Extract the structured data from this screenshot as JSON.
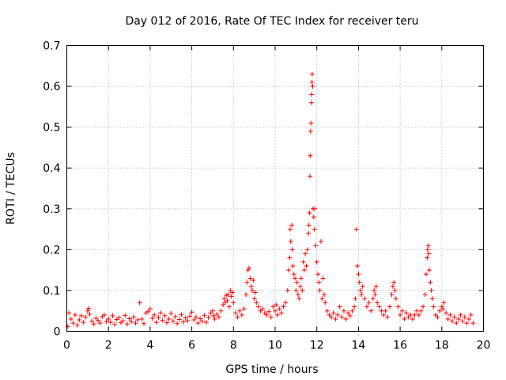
{
  "chart_data": {
    "type": "scatter",
    "title": "Day 012 of 2016, Rate Of TEC Index for receiver teru",
    "xlabel": "GPS time / hours",
    "ylabel": "ROTI / TECUs",
    "xlim": [
      0,
      20
    ],
    "ylim": [
      0,
      0.7
    ],
    "xticks": [
      0,
      2,
      4,
      6,
      8,
      10,
      12,
      14,
      16,
      18,
      20
    ],
    "yticks": [
      0,
      0.1,
      0.2,
      0.3,
      0.4,
      0.5,
      0.6,
      0.7
    ],
    "xtick_labels": [
      "0",
      "2",
      "4",
      "6",
      "8",
      "10",
      "12",
      "14",
      "16",
      "18",
      "20"
    ],
    "ytick_labels": [
      "0",
      "0.1",
      "0.2",
      "0.3",
      "0.4",
      "0.5",
      "0.6",
      "0.7"
    ],
    "grid": true,
    "marker": "plus",
    "color": "#ff0000",
    "series": [
      {
        "name": "ROTI",
        "points": [
          [
            0.05,
            0.012
          ],
          [
            0.1,
            0.045
          ],
          [
            0.2,
            0.03
          ],
          [
            0.3,
            0.02
          ],
          [
            0.4,
            0.04
          ],
          [
            0.5,
            0.015
          ],
          [
            0.6,
            0.028
          ],
          [
            0.7,
            0.038
          ],
          [
            0.8,
            0.022
          ],
          [
            0.9,
            0.035
          ],
          [
            1.0,
            0.05
          ],
          [
            1.05,
            0.056
          ],
          [
            1.1,
            0.042
          ],
          [
            1.2,
            0.025
          ],
          [
            1.3,
            0.018
          ],
          [
            1.4,
            0.032
          ],
          [
            1.5,
            0.027
          ],
          [
            1.6,
            0.02
          ],
          [
            1.7,
            0.036
          ],
          [
            1.8,
            0.04
          ],
          [
            1.9,
            0.024
          ],
          [
            2.0,
            0.03
          ],
          [
            2.1,
            0.022
          ],
          [
            2.2,
            0.038
          ],
          [
            2.3,
            0.017
          ],
          [
            2.4,
            0.029
          ],
          [
            2.5,
            0.033
          ],
          [
            2.6,
            0.021
          ],
          [
            2.7,
            0.026
          ],
          [
            2.8,
            0.039
          ],
          [
            2.9,
            0.018
          ],
          [
            3.0,
            0.031
          ],
          [
            3.1,
            0.024
          ],
          [
            3.2,
            0.035
          ],
          [
            3.3,
            0.02
          ],
          [
            3.4,
            0.028
          ],
          [
            3.5,
            0.07
          ],
          [
            3.6,
            0.03
          ],
          [
            3.7,
            0.019
          ],
          [
            3.8,
            0.045
          ],
          [
            3.9,
            0.048
          ],
          [
            4.0,
            0.055
          ],
          [
            4.1,
            0.032
          ],
          [
            4.2,
            0.04
          ],
          [
            4.3,
            0.022
          ],
          [
            4.4,
            0.034
          ],
          [
            4.5,
            0.045
          ],
          [
            4.6,
            0.027
          ],
          [
            4.7,
            0.038
          ],
          [
            4.8,
            0.021
          ],
          [
            4.9,
            0.03
          ],
          [
            5.0,
            0.044
          ],
          [
            5.1,
            0.025
          ],
          [
            5.2,
            0.036
          ],
          [
            5.3,
            0.019
          ],
          [
            5.4,
            0.029
          ],
          [
            5.5,
            0.041
          ],
          [
            5.6,
            0.023
          ],
          [
            5.7,
            0.033
          ],
          [
            5.8,
            0.026
          ],
          [
            5.9,
            0.037
          ],
          [
            6.0,
            0.047
          ],
          [
            6.1,
            0.028
          ],
          [
            6.2,
            0.035
          ],
          [
            6.3,
            0.02
          ],
          [
            6.4,
            0.031
          ],
          [
            6.5,
            0.025
          ],
          [
            6.6,
            0.039
          ],
          [
            6.7,
            0.022
          ],
          [
            6.8,
            0.034
          ],
          [
            6.9,
            0.045
          ],
          [
            7.0,
            0.05
          ],
          [
            7.05,
            0.038
          ],
          [
            7.1,
            0.03
          ],
          [
            7.2,
            0.042
          ],
          [
            7.3,
            0.035
          ],
          [
            7.4,
            0.05
          ],
          [
            7.5,
            0.065
          ],
          [
            7.55,
            0.08
          ],
          [
            7.6,
            0.07
          ],
          [
            7.65,
            0.088
          ],
          [
            7.7,
            0.075
          ],
          [
            7.75,
            0.09
          ],
          [
            7.8,
            0.06
          ],
          [
            7.85,
            0.1
          ],
          [
            7.9,
            0.085
          ],
          [
            7.95,
            0.095
          ],
          [
            8.0,
            0.07
          ],
          [
            8.1,
            0.045
          ],
          [
            8.2,
            0.035
          ],
          [
            8.3,
            0.05
          ],
          [
            8.4,
            0.04
          ],
          [
            8.5,
            0.055
          ],
          [
            8.6,
            0.09
          ],
          [
            8.65,
            0.12
          ],
          [
            8.7,
            0.15
          ],
          [
            8.75,
            0.155
          ],
          [
            8.8,
            0.13
          ],
          [
            8.85,
            0.11
          ],
          [
            8.9,
            0.1
          ],
          [
            8.95,
            0.125
          ],
          [
            9.0,
            0.08
          ],
          [
            9.05,
            0.095
          ],
          [
            9.1,
            0.07
          ],
          [
            9.2,
            0.06
          ],
          [
            9.3,
            0.05
          ],
          [
            9.4,
            0.055
          ],
          [
            9.5,
            0.045
          ],
          [
            9.6,
            0.04
          ],
          [
            9.7,
            0.048
          ],
          [
            9.8,
            0.035
          ],
          [
            9.9,
            0.06
          ],
          [
            10.0,
            0.05
          ],
          [
            10.05,
            0.065
          ],
          [
            10.1,
            0.04
          ],
          [
            10.2,
            0.055
          ],
          [
            10.3,
            0.045
          ],
          [
            10.4,
            0.06
          ],
          [
            10.5,
            0.07
          ],
          [
            10.6,
            0.1
          ],
          [
            10.65,
            0.15
          ],
          [
            10.7,
            0.18
          ],
          [
            10.72,
            0.25
          ],
          [
            10.75,
            0.22
          ],
          [
            10.8,
            0.26
          ],
          [
            10.82,
            0.2
          ],
          [
            10.85,
            0.16
          ],
          [
            10.9,
            0.14
          ],
          [
            10.95,
            0.13
          ],
          [
            11.0,
            0.1
          ],
          [
            11.05,
            0.12
          ],
          [
            11.1,
            0.09
          ],
          [
            11.15,
            0.08
          ],
          [
            11.2,
            0.11
          ],
          [
            11.25,
            0.13
          ],
          [
            11.3,
            0.1
          ],
          [
            11.35,
            0.17
          ],
          [
            11.4,
            0.15
          ],
          [
            11.45,
            0.19
          ],
          [
            11.5,
            0.16
          ],
          [
            11.55,
            0.2
          ],
          [
            11.6,
            0.24
          ],
          [
            11.62,
            0.26
          ],
          [
            11.65,
            0.29
          ],
          [
            11.67,
            0.38
          ],
          [
            11.68,
            0.43
          ],
          [
            11.7,
            0.49
          ],
          [
            11.72,
            0.51
          ],
          [
            11.74,
            0.56
          ],
          [
            11.75,
            0.58
          ],
          [
            11.77,
            0.61
          ],
          [
            11.78,
            0.63
          ],
          [
            11.8,
            0.6
          ],
          [
            11.82,
            0.3
          ],
          [
            11.85,
            0.28
          ],
          [
            11.88,
            0.25
          ],
          [
            11.9,
            0.3
          ],
          [
            11.95,
            0.21
          ],
          [
            12.0,
            0.17
          ],
          [
            12.05,
            0.14
          ],
          [
            12.1,
            0.12
          ],
          [
            12.15,
            0.1
          ],
          [
            12.2,
            0.22
          ],
          [
            12.25,
            0.08
          ],
          [
            12.3,
            0.13
          ],
          [
            12.35,
            0.09
          ],
          [
            12.4,
            0.07
          ],
          [
            12.5,
            0.05
          ],
          [
            12.6,
            0.04
          ],
          [
            12.7,
            0.035
          ],
          [
            12.8,
            0.045
          ],
          [
            12.9,
            0.03
          ],
          [
            13.0,
            0.04
          ],
          [
            13.1,
            0.06
          ],
          [
            13.2,
            0.035
          ],
          [
            13.3,
            0.05
          ],
          [
            13.4,
            0.03
          ],
          [
            13.5,
            0.045
          ],
          [
            13.6,
            0.038
          ],
          [
            13.7,
            0.05
          ],
          [
            13.8,
            0.06
          ],
          [
            13.85,
            0.08
          ],
          [
            13.9,
            0.25
          ],
          [
            13.95,
            0.16
          ],
          [
            14.0,
            0.14
          ],
          [
            14.05,
            0.12
          ],
          [
            14.1,
            0.1
          ],
          [
            14.15,
            0.09
          ],
          [
            14.2,
            0.11
          ],
          [
            14.3,
            0.08
          ],
          [
            14.4,
            0.06
          ],
          [
            14.5,
            0.07
          ],
          [
            14.6,
            0.05
          ],
          [
            14.7,
            0.08
          ],
          [
            14.75,
            0.1
          ],
          [
            14.8,
            0.09
          ],
          [
            14.85,
            0.11
          ],
          [
            14.9,
            0.07
          ],
          [
            15.0,
            0.06
          ],
          [
            15.1,
            0.05
          ],
          [
            15.2,
            0.04
          ],
          [
            15.3,
            0.05
          ],
          [
            15.4,
            0.035
          ],
          [
            15.5,
            0.06
          ],
          [
            15.6,
            0.09
          ],
          [
            15.65,
            0.11
          ],
          [
            15.7,
            0.12
          ],
          [
            15.75,
            0.1
          ],
          [
            15.8,
            0.08
          ],
          [
            15.9,
            0.06
          ],
          [
            16.0,
            0.04
          ],
          [
            16.1,
            0.05
          ],
          [
            16.2,
            0.03
          ],
          [
            16.3,
            0.045
          ],
          [
            16.4,
            0.035
          ],
          [
            16.5,
            0.04
          ],
          [
            16.6,
            0.03
          ],
          [
            16.7,
            0.04
          ],
          [
            16.8,
            0.05
          ],
          [
            16.9,
            0.04
          ],
          [
            17.0,
            0.05
          ],
          [
            17.1,
            0.06
          ],
          [
            17.2,
            0.09
          ],
          [
            17.25,
            0.14
          ],
          [
            17.3,
            0.18
          ],
          [
            17.32,
            0.2
          ],
          [
            17.35,
            0.21
          ],
          [
            17.38,
            0.19
          ],
          [
            17.4,
            0.15
          ],
          [
            17.45,
            0.12
          ],
          [
            17.5,
            0.1
          ],
          [
            17.55,
            0.08
          ],
          [
            17.6,
            0.06
          ],
          [
            17.7,
            0.04
          ],
          [
            17.8,
            0.035
          ],
          [
            17.9,
            0.05
          ],
          [
            18.0,
            0.06
          ],
          [
            18.05,
            0.055
          ],
          [
            18.1,
            0.07
          ],
          [
            18.2,
            0.045
          ],
          [
            18.3,
            0.03
          ],
          [
            18.4,
            0.04
          ],
          [
            18.5,
            0.025
          ],
          [
            18.6,
            0.035
          ],
          [
            18.7,
            0.02
          ],
          [
            18.8,
            0.03
          ],
          [
            18.9,
            0.04
          ],
          [
            19.0,
            0.025
          ],
          [
            19.1,
            0.035
          ],
          [
            19.2,
            0.02
          ],
          [
            19.3,
            0.03
          ],
          [
            19.4,
            0.04
          ],
          [
            19.5,
            0.02
          ]
        ]
      }
    ]
  }
}
